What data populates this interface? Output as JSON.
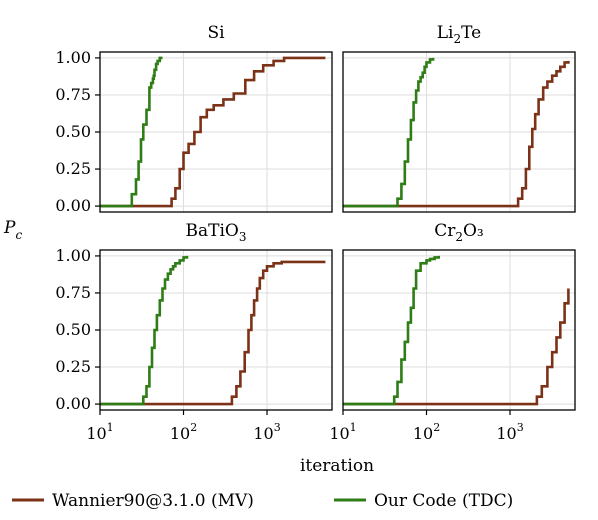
{
  "colors": {
    "wannier": "#7b3217",
    "ours": "#2f7d16",
    "grid": "#dddddd",
    "frame": "#000000"
  },
  "legend": {
    "wannier_label": "Wannier90@3.1.0 (MV)",
    "ours_label": "Our Code (TDC)"
  },
  "chart_data": {
    "type": "line",
    "xlabel": "iteration",
    "ylabel": "P",
    "ylabel_sub": "c",
    "xscale": "log",
    "xlim": [
      10,
      6000
    ],
    "ylim": [
      -0.04,
      1.04
    ],
    "yticks": [
      "0.00",
      "0.25",
      "0.50",
      "0.75",
      "1.00"
    ],
    "ytick_values": [
      0,
      0.25,
      0.5,
      0.75,
      1.0
    ],
    "xticks": [
      {
        "base": "10",
        "exp": "1",
        "value": 10
      },
      {
        "base": "10",
        "exp": "2",
        "value": 100
      },
      {
        "base": "10",
        "exp": "3",
        "value": 1000
      }
    ],
    "grid": true,
    "legend_position": "bottom",
    "panels": [
      {
        "title": {
          "pre": "Si",
          "sub": "",
          "post": ""
        },
        "series": [
          {
            "name": "Wannier90@3.1.0 (MV)",
            "x": [
              10,
              66,
              72,
              80,
              90,
              100,
              115,
              135,
              160,
              190,
              230,
              300,
              400,
              550,
              700,
              900,
              1200,
              1600,
              2000,
              5000
            ],
            "y": [
              0,
              0,
              0.05,
              0.12,
              0.25,
              0.36,
              0.42,
              0.5,
              0.6,
              0.65,
              0.68,
              0.72,
              0.76,
              0.85,
              0.91,
              0.95,
              0.98,
              1.0,
              1.0,
              1.0
            ]
          },
          {
            "name": "Our Code (TDC)",
            "x": [
              10,
              21,
              24,
              27,
              29,
              31,
              33,
              36,
              39,
              41,
              43,
              44,
              45,
              47,
              49,
              52,
              56
            ],
            "y": [
              0,
              0,
              0.08,
              0.18,
              0.3,
              0.45,
              0.55,
              0.65,
              0.8,
              0.83,
              0.86,
              0.88,
              0.92,
              0.96,
              0.98,
              1.0,
              1.0
            ]
          }
        ]
      },
      {
        "title": {
          "pre": "Li",
          "sub": "2",
          "post": "Te"
        },
        "series": [
          {
            "name": "Wannier90@3.1.0 (MV)",
            "x": [
              10,
              1100,
              1250,
              1400,
              1550,
              1700,
              1850,
              2000,
              2200,
              2500,
              2800,
              3200,
              3600,
              4000,
              4500,
              5000
            ],
            "y": [
              0,
              0,
              0.05,
              0.12,
              0.25,
              0.4,
              0.52,
              0.62,
              0.72,
              0.8,
              0.84,
              0.88,
              0.91,
              0.94,
              0.97,
              0.98
            ]
          },
          {
            "name": "Our Code (TDC)",
            "x": [
              10,
              40,
              45,
              50,
              55,
              60,
              65,
              70,
              75,
              80,
              85,
              90,
              95,
              100,
              110,
              120
            ],
            "y": [
              0,
              0,
              0.05,
              0.15,
              0.3,
              0.45,
              0.58,
              0.7,
              0.78,
              0.84,
              0.87,
              0.9,
              0.94,
              0.97,
              0.99,
              1.0
            ]
          }
        ]
      },
      {
        "title": {
          "pre": "BaTiO",
          "sub": "3",
          "post": ""
        },
        "series": [
          {
            "name": "Wannier90@3.1.0 (MV)",
            "x": [
              10,
              330,
              380,
              430,
              480,
              540,
              600,
              650,
              700,
              760,
              820,
              900,
              1000,
              1200,
              1500,
              2000,
              3000,
              5000
            ],
            "y": [
              0,
              0,
              0.05,
              0.12,
              0.22,
              0.35,
              0.5,
              0.6,
              0.7,
              0.78,
              0.85,
              0.9,
              0.93,
              0.95,
              0.96,
              0.96,
              0.96,
              0.96
            ]
          },
          {
            "name": "Our Code (TDC)",
            "x": [
              10,
              30,
              33,
              36,
              39,
              42,
              45,
              48,
              52,
              56,
              60,
              65,
              70,
              75,
              80,
              90,
              100,
              110
            ],
            "y": [
              0,
              0,
              0.05,
              0.12,
              0.25,
              0.38,
              0.5,
              0.6,
              0.7,
              0.78,
              0.84,
              0.88,
              0.91,
              0.93,
              0.95,
              0.97,
              0.99,
              1.0
            ]
          }
        ]
      },
      {
        "title": {
          "pre": "Cr",
          "sub": "2",
          "post": "O₃"
        },
        "series": [
          {
            "name": "Wannier90@3.1.0 (MV)",
            "x": [
              10,
              1900,
              2100,
              2400,
              2800,
              3200,
              3600,
              4000,
              4500,
              5000
            ],
            "y": [
              0,
              0,
              0.05,
              0.12,
              0.25,
              0.35,
              0.45,
              0.55,
              0.68,
              0.78
            ]
          },
          {
            "name": "Our Code (TDC)",
            "x": [
              10,
              38,
              41,
              45,
              50,
              55,
              60,
              65,
              70,
              75,
              85,
              100,
              110,
              125,
              140
            ],
            "y": [
              0,
              0,
              0.05,
              0.15,
              0.3,
              0.42,
              0.55,
              0.65,
              0.78,
              0.9,
              0.95,
              0.97,
              0.98,
              0.99,
              1.0
            ]
          }
        ]
      }
    ]
  }
}
